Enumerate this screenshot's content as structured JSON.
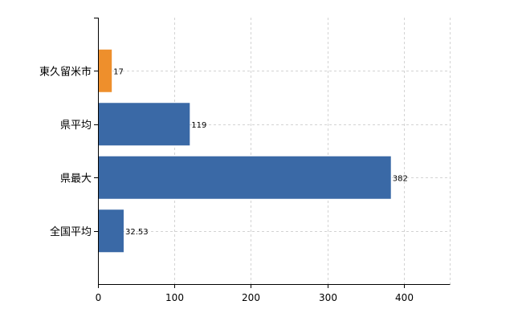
{
  "chart_data": {
    "type": "bar",
    "orientation": "horizontal",
    "categories": [
      "東久留米市",
      "県平均",
      "県最大",
      "全国平均"
    ],
    "values": [
      17,
      119,
      382,
      32.53
    ],
    "value_labels": [
      "17",
      "119",
      "382",
      "32.53"
    ],
    "bar_colors": [
      "#ee8f2c",
      "#3a69a6",
      "#3a69a6",
      "#3a69a6"
    ],
    "xlim": [
      0,
      460
    ],
    "x_ticks": [
      0,
      100,
      200,
      300,
      400
    ],
    "x_tick_labels": [
      "0",
      "100",
      "200",
      "300",
      "400"
    ],
    "grid": true,
    "legend": "none"
  }
}
